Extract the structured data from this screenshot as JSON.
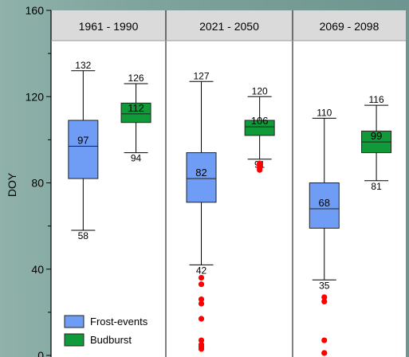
{
  "chart_data": {
    "type": "boxplot",
    "ylabel": "DOY",
    "ylim": [
      0,
      160
    ],
    "yticks": [
      0,
      40,
      80,
      120,
      160
    ],
    "grid": false,
    "legend_position": "bottom-left",
    "panels": [
      {
        "title": "1961 - 1990",
        "boxes": [
          {
            "series": "Frost-events",
            "min": 58,
            "q1": 82,
            "median": 97,
            "q3": 109,
            "max": 132,
            "label": "97",
            "min_label": "58",
            "max_label": "132",
            "outliers": []
          },
          {
            "series": "Budburst",
            "min": 94,
            "q1": 108,
            "median": 112,
            "q3": 117,
            "max": 126,
            "label": "112",
            "min_label": "94",
            "max_label": "126",
            "outliers": []
          }
        ]
      },
      {
        "title": "2021 - 2050",
        "boxes": [
          {
            "series": "Frost-events",
            "min": 42,
            "q1": 71,
            "median": 82,
            "q3": 94,
            "max": 127,
            "label": "82",
            "min_label": "42",
            "max_label": "127",
            "outliers": [
              36,
              33,
              26,
              24,
              17,
              7,
              5,
              4,
              3
            ]
          },
          {
            "series": "Budburst",
            "min": 91,
            "q1": 102,
            "median": 106,
            "q3": 109,
            "max": 120,
            "label": "106",
            "min_label": "91",
            "max_label": "120",
            "outliers": [
              89,
              88,
              87,
              86
            ]
          }
        ]
      },
      {
        "title": "2069 - 2098",
        "boxes": [
          {
            "series": "Frost-events",
            "min": 35,
            "q1": 59,
            "median": 68,
            "q3": 80,
            "max": 110,
            "label": "68",
            "min_label": "35",
            "max_label": "110",
            "outliers": [
              27,
              25,
              7,
              1,
              0
            ]
          },
          {
            "series": "Budburst",
            "min": 81,
            "q1": 94,
            "median": 99,
            "q3": 104,
            "max": 116,
            "label": "99",
            "min_label": "81",
            "max_label": "116",
            "outliers": []
          }
        ]
      }
    ],
    "legend": [
      {
        "name": "Frost-events",
        "color": "#6f9df5"
      },
      {
        "name": "Budburst",
        "color": "#119a3a"
      }
    ]
  },
  "colors": {
    "header_band": "#dadada",
    "outlier": "#ff0000",
    "axis": "#000000"
  }
}
